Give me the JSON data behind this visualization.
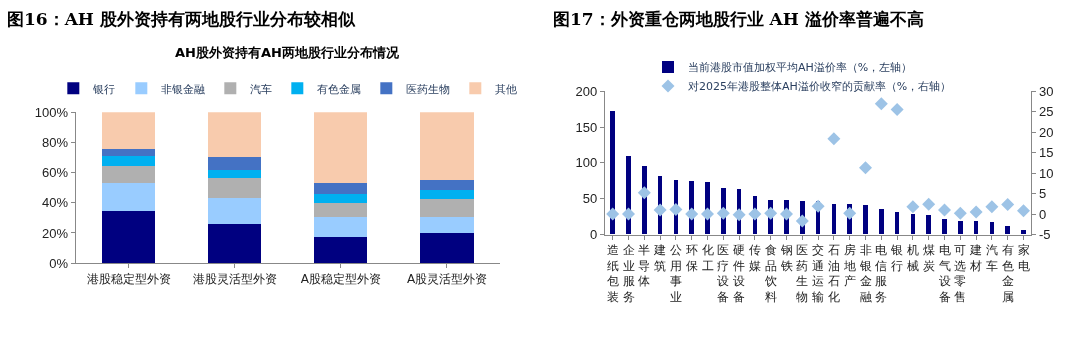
{
  "chart_data": [
    {
      "type": "bar",
      "title": "图16：AH 股外资持有两地股行业分布较相似",
      "subtitle": "AH股外资持有AH两地股行业分布情况",
      "stacked": true,
      "legend": "top",
      "categories": [
        "港股稳定型外资",
        "港股灵活型外资",
        "A股稳定型外资",
        "A股灵活型外资"
      ],
      "series": [
        {
          "name": "银行",
          "color": "#000080",
          "values": [
            34.7,
            25.8,
            17.6,
            20.2
          ]
        },
        {
          "name": "非银金融",
          "color": "#99ccff",
          "values": [
            18.2,
            17.4,
            13.2,
            10.6
          ]
        },
        {
          "name": "汽车",
          "color": "#b0b0b0",
          "values": [
            11.7,
            13.0,
            9.1,
            11.9
          ]
        },
        {
          "name": "有色金属",
          "color": "#00b0f0",
          "values": [
            6.4,
            5.8,
            6.1,
            6.1
          ]
        },
        {
          "name": "医药生物",
          "color": "#4472c4",
          "values": [
            4.5,
            8.3,
            7.1,
            6.3
          ]
        },
        {
          "name": "其他",
          "color": "#f8cbad",
          "values": [
            24.5,
            29.7,
            46.9,
            44.9
          ]
        }
      ],
      "ylim": [
        0,
        100
      ],
      "yticks": [
        {
          "value": 0,
          "label": "0%"
        },
        {
          "value": 20,
          "label": "20%"
        },
        {
          "value": 40,
          "label": "40%"
        },
        {
          "value": 60,
          "label": "60%"
        },
        {
          "value": 80,
          "label": "80%"
        },
        {
          "value": 100,
          "label": "100%"
        }
      ]
    },
    {
      "type": "bar",
      "title": "图17：外资重仓两地股行业 AH 溢价率普遍不高",
      "legend": "top",
      "categories": [
        "造纸包装",
        "企业服务",
        "半导体",
        "建筑",
        "公用事业",
        "环保",
        "化工",
        "医疗设备",
        "硬件设备",
        "传媒",
        "食品饮料",
        "钢铁",
        "医药生物",
        "交通运输",
        "石油石化",
        "房地产",
        "非银金融",
        "电信服务",
        "银行",
        "机械",
        "煤炭",
        "电气设备",
        "可选零售",
        "建材",
        "汽车",
        "有色金属",
        "家电"
      ],
      "series": [
        {
          "name": "当前港股市值加权平均AH溢价率（%，左轴）",
          "type": "bar",
          "color": "#000080",
          "values": [
            172,
            109,
            95,
            81,
            76,
            74,
            73,
            65,
            63,
            54,
            48,
            48,
            47,
            47,
            43,
            43,
            41,
            36,
            31,
            29,
            27,
            21,
            19,
            19,
            17,
            12,
            6
          ]
        },
        {
          "name": "对2025年港股整体AH溢价收窄的贡献率（%，右轴）",
          "type": "scatter",
          "axis": "y2",
          "marker": "diamond",
          "color": "#9dc3e6",
          "values": [
            0,
            0,
            5.2,
            1.0,
            1.1,
            0,
            0,
            0.2,
            -0.2,
            0,
            0.2,
            0,
            -1.7,
            1.9,
            18.4,
            0.2,
            11.3,
            26.9,
            25.5,
            1.8,
            2.4,
            1.0,
            0.2,
            0.5,
            1.8,
            2.3,
            0.8
          ]
        }
      ],
      "ylim": [
        0,
        200
      ],
      "yticks": [
        0,
        50,
        100,
        150,
        200
      ],
      "y2lim": [
        -5,
        30
      ],
      "y2ticks": [
        -5,
        0,
        5,
        10,
        15,
        20,
        25,
        30
      ]
    }
  ]
}
